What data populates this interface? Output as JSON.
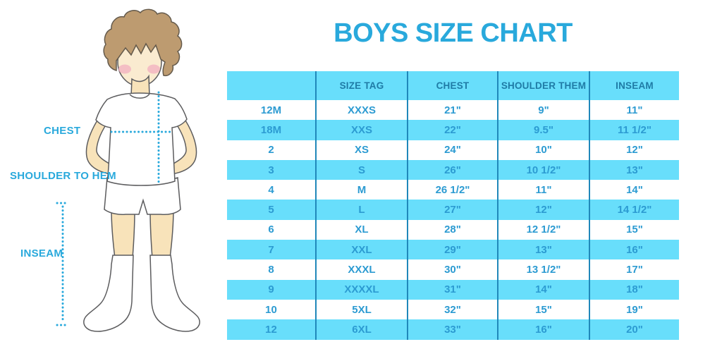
{
  "title": "BOYS SIZE CHART",
  "colors": {
    "accent": "#29A9DC",
    "table_stripe": "#68DEFB",
    "table_header_bg": "#68DEFB",
    "table_header_text": "#1F7BA6",
    "table_cell_text": "#2C9BD2",
    "table_divider": "#2088BA",
    "hair": "#BD9B70",
    "skin": "#F8E3BA",
    "face": "#FAEBD0",
    "blush": "#F2B3C1",
    "figure_outline": "#5C5C5E"
  },
  "figure": {
    "labels": {
      "chest": "CHEST",
      "shoulder_to_hem": "SHOULDER TO HEM",
      "inseam": "INSEAM"
    }
  },
  "table": {
    "headers": [
      "",
      "SIZE TAG",
      "CHEST",
      "SHOULDER THEM",
      "INSEAM"
    ],
    "rows": [
      [
        "12M",
        "XXXS",
        "21\"",
        "9\"",
        "11\""
      ],
      [
        "18M",
        "XXS",
        "22\"",
        "9.5\"",
        "11 1/2\""
      ],
      [
        "2",
        "XS",
        "24\"",
        "10\"",
        "12\""
      ],
      [
        "3",
        "S",
        "26\"",
        "10 1/2\"",
        "13\""
      ],
      [
        "4",
        "M",
        "26 1/2\"",
        "11\"",
        "14\""
      ],
      [
        "5",
        "L",
        "27\"",
        "12\"",
        "14 1/2\""
      ],
      [
        "6",
        "XL",
        "28\"",
        "12 1/2\"",
        "15\""
      ],
      [
        "7",
        "XXL",
        "29\"",
        "13\"",
        "16\""
      ],
      [
        "8",
        "XXXL",
        "30\"",
        "13 1/2\"",
        "17\""
      ],
      [
        "9",
        "XXXXL",
        "31\"",
        "14\"",
        "18\""
      ],
      [
        "10",
        "5XL",
        "32\"",
        "15\"",
        "19\""
      ],
      [
        "12",
        "6XL",
        "33\"",
        "16\"",
        "20\""
      ]
    ]
  }
}
